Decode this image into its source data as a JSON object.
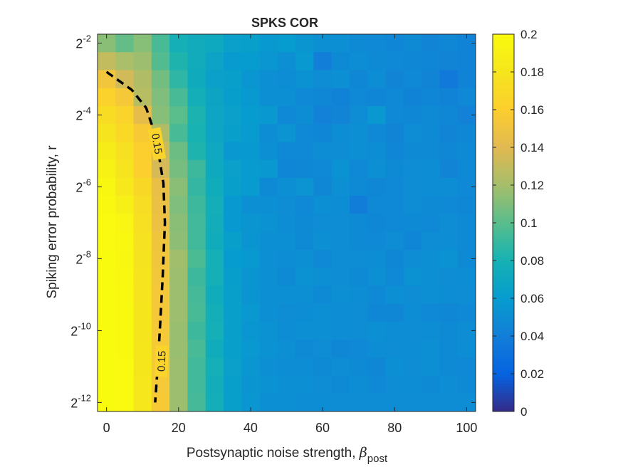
{
  "chart_data": {
    "type": "heatmap",
    "title": "SPKS COR",
    "xlabel": "Postsynaptic noise strength, ",
    "xlabel_symbol": "β",
    "xlabel_subscript": "post",
    "ylabel": "Spiking error probability, r",
    "x_ticks": [
      "0",
      "20",
      "40",
      "60",
      "80",
      "100"
    ],
    "x_tick_values": [
      0,
      20,
      40,
      60,
      80,
      100
    ],
    "xlim": [
      -2.5,
      102.5
    ],
    "y_ticks": [
      {
        "base": "2",
        "exp": "-2",
        "value": -2
      },
      {
        "base": "2",
        "exp": "-4",
        "value": -4
      },
      {
        "base": "2",
        "exp": "-6",
        "value": -6
      },
      {
        "base": "2",
        "exp": "-8",
        "value": -8
      },
      {
        "base": "2",
        "exp": "-10",
        "value": -10
      },
      {
        "base": "2",
        "exp": "-12",
        "value": -12
      }
    ],
    "ylim_log2": [
      -12.25,
      -1.75
    ],
    "y_scale": "log2",
    "colormap": "parula",
    "clim": [
      0,
      0.2
    ],
    "colorbar_ticks": [
      "0",
      "0.02",
      "0.04",
      "0.06",
      "0.08",
      "0.1",
      "0.12",
      "0.14",
      "0.16",
      "0.18",
      "0.2"
    ],
    "colorbar_tick_values": [
      0,
      0.02,
      0.04,
      0.06,
      0.08,
      0.1,
      0.12,
      0.14,
      0.16,
      0.18,
      0.2
    ],
    "x": [
      0,
      5,
      10,
      15,
      20,
      25,
      30,
      35,
      40,
      45,
      50,
      55,
      60,
      65,
      70,
      75,
      80,
      85,
      90,
      95,
      100
    ],
    "y_log2": [
      -2.0,
      -2.5,
      -3.0,
      -3.5,
      -4.0,
      -4.5,
      -5.0,
      -5.5,
      -6.0,
      -6.5,
      -7.0,
      -7.5,
      -8.0,
      -8.5,
      -9.0,
      -9.5,
      -10.0,
      -10.5,
      -11.0,
      -11.5,
      -12.0
    ],
    "z": [
      [
        0.113,
        0.103,
        0.112,
        0.095,
        0.078,
        0.074,
        0.072,
        0.064,
        0.063,
        0.058,
        0.06,
        0.055,
        0.052,
        0.052,
        0.048,
        0.047,
        0.045,
        0.048,
        0.044,
        0.046,
        0.043
      ],
      [
        0.13,
        0.122,
        0.118,
        0.098,
        0.083,
        0.074,
        0.067,
        0.059,
        0.06,
        0.056,
        0.052,
        0.058,
        0.04,
        0.048,
        0.05,
        0.048,
        0.047,
        0.046,
        0.045,
        0.044,
        0.043
      ],
      [
        0.152,
        0.135,
        0.124,
        0.107,
        0.088,
        0.073,
        0.064,
        0.063,
        0.056,
        0.052,
        0.05,
        0.053,
        0.049,
        0.051,
        0.046,
        0.05,
        0.044,
        0.047,
        0.044,
        0.036,
        0.043
      ],
      [
        0.163,
        0.154,
        0.126,
        0.11,
        0.095,
        0.077,
        0.068,
        0.062,
        0.058,
        0.052,
        0.052,
        0.047,
        0.046,
        0.043,
        0.047,
        0.045,
        0.047,
        0.043,
        0.045,
        0.043,
        0.047
      ],
      [
        0.172,
        0.165,
        0.144,
        0.112,
        0.1,
        0.082,
        0.069,
        0.064,
        0.06,
        0.057,
        0.047,
        0.05,
        0.042,
        0.044,
        0.049,
        0.057,
        0.047,
        0.046,
        0.048,
        0.046,
        0.042
      ],
      [
        0.179,
        0.169,
        0.156,
        0.124,
        0.095,
        0.081,
        0.069,
        0.063,
        0.059,
        0.05,
        0.054,
        0.047,
        0.045,
        0.05,
        0.052,
        0.047,
        0.044,
        0.049,
        0.048,
        0.044,
        0.046
      ],
      [
        0.187,
        0.175,
        0.16,
        0.132,
        0.105,
        0.083,
        0.071,
        0.057,
        0.058,
        0.052,
        0.047,
        0.047,
        0.05,
        0.049,
        0.051,
        0.05,
        0.045,
        0.048,
        0.048,
        0.046,
        0.048
      ],
      [
        0.192,
        0.179,
        0.16,
        0.136,
        0.108,
        0.092,
        0.072,
        0.064,
        0.059,
        0.057,
        0.045,
        0.046,
        0.047,
        0.053,
        0.047,
        0.051,
        0.048,
        0.049,
        0.05,
        0.044,
        0.048
      ],
      [
        0.196,
        0.183,
        0.168,
        0.146,
        0.113,
        0.089,
        0.075,
        0.063,
        0.059,
        0.048,
        0.052,
        0.054,
        0.046,
        0.051,
        0.048,
        0.046,
        0.047,
        0.049,
        0.05,
        0.05,
        0.047
      ],
      [
        0.197,
        0.19,
        0.173,
        0.147,
        0.11,
        0.092,
        0.077,
        0.058,
        0.052,
        0.051,
        0.049,
        0.047,
        0.051,
        0.05,
        0.039,
        0.047,
        0.047,
        0.049,
        0.048,
        0.047,
        0.046
      ],
      [
        0.199,
        0.195,
        0.175,
        0.148,
        0.113,
        0.093,
        0.076,
        0.058,
        0.055,
        0.053,
        0.05,
        0.048,
        0.049,
        0.049,
        0.048,
        0.046,
        0.047,
        0.048,
        0.047,
        0.049,
        0.048
      ],
      [
        0.199,
        0.197,
        0.177,
        0.151,
        0.114,
        0.093,
        0.075,
        0.063,
        0.055,
        0.052,
        0.052,
        0.048,
        0.052,
        0.049,
        0.048,
        0.047,
        0.049,
        0.045,
        0.049,
        0.05,
        0.048
      ],
      [
        0.2,
        0.196,
        0.178,
        0.152,
        0.119,
        0.096,
        0.078,
        0.06,
        0.058,
        0.052,
        0.05,
        0.051,
        0.047,
        0.049,
        0.049,
        0.05,
        0.046,
        0.049,
        0.051,
        0.053,
        0.048
      ],
      [
        0.2,
        0.197,
        0.179,
        0.153,
        0.118,
        0.092,
        0.078,
        0.062,
        0.055,
        0.051,
        0.048,
        0.053,
        0.051,
        0.049,
        0.048,
        0.051,
        0.047,
        0.053,
        0.051,
        0.049,
        0.05
      ],
      [
        0.2,
        0.198,
        0.179,
        0.154,
        0.118,
        0.094,
        0.075,
        0.063,
        0.055,
        0.052,
        0.052,
        0.051,
        0.048,
        0.051,
        0.05,
        0.047,
        0.052,
        0.049,
        0.052,
        0.05,
        0.049
      ],
      [
        0.2,
        0.198,
        0.18,
        0.154,
        0.118,
        0.095,
        0.077,
        0.063,
        0.057,
        0.052,
        0.049,
        0.05,
        0.051,
        0.05,
        0.049,
        0.046,
        0.046,
        0.05,
        0.047,
        0.046,
        0.047
      ],
      [
        0.2,
        0.198,
        0.18,
        0.155,
        0.117,
        0.092,
        0.078,
        0.063,
        0.056,
        0.053,
        0.05,
        0.051,
        0.051,
        0.05,
        0.049,
        0.051,
        0.05,
        0.049,
        0.05,
        0.048,
        0.049
      ],
      [
        0.2,
        0.198,
        0.181,
        0.155,
        0.117,
        0.095,
        0.075,
        0.063,
        0.057,
        0.053,
        0.051,
        0.048,
        0.049,
        0.046,
        0.047,
        0.05,
        0.049,
        0.05,
        0.051,
        0.048,
        0.05
      ],
      [
        0.2,
        0.199,
        0.181,
        0.155,
        0.118,
        0.093,
        0.078,
        0.064,
        0.056,
        0.052,
        0.05,
        0.05,
        0.048,
        0.049,
        0.048,
        0.046,
        0.051,
        0.049,
        0.051,
        0.048,
        0.047
      ],
      [
        0.2,
        0.199,
        0.182,
        0.155,
        0.118,
        0.093,
        0.076,
        0.063,
        0.055,
        0.053,
        0.051,
        0.051,
        0.049,
        0.048,
        0.05,
        0.047,
        0.049,
        0.05,
        0.048,
        0.05,
        0.048
      ],
      [
        0.2,
        0.199,
        0.182,
        0.156,
        0.118,
        0.094,
        0.077,
        0.063,
        0.056,
        0.052,
        0.051,
        0.05,
        0.05,
        0.049,
        0.049,
        0.049,
        0.049,
        0.049,
        0.049,
        0.049,
        0.049
      ]
    ],
    "contour": {
      "level": 0.15,
      "labels": [
        "0.15",
        "0.15"
      ],
      "style": "dashed",
      "color": "#000000",
      "points": [
        [
          0,
          -2.8
        ],
        [
          7,
          -3.3
        ],
        [
          11,
          -3.8
        ],
        [
          13,
          -4.4
        ],
        [
          14.5,
          -5.1
        ],
        [
          15.8,
          -5.9
        ],
        [
          16.2,
          -7.0
        ],
        [
          15.6,
          -8.5
        ],
        [
          14.9,
          -9.8
        ],
        [
          14.2,
          -11.0
        ],
        [
          13.5,
          -12.0
        ]
      ]
    }
  }
}
